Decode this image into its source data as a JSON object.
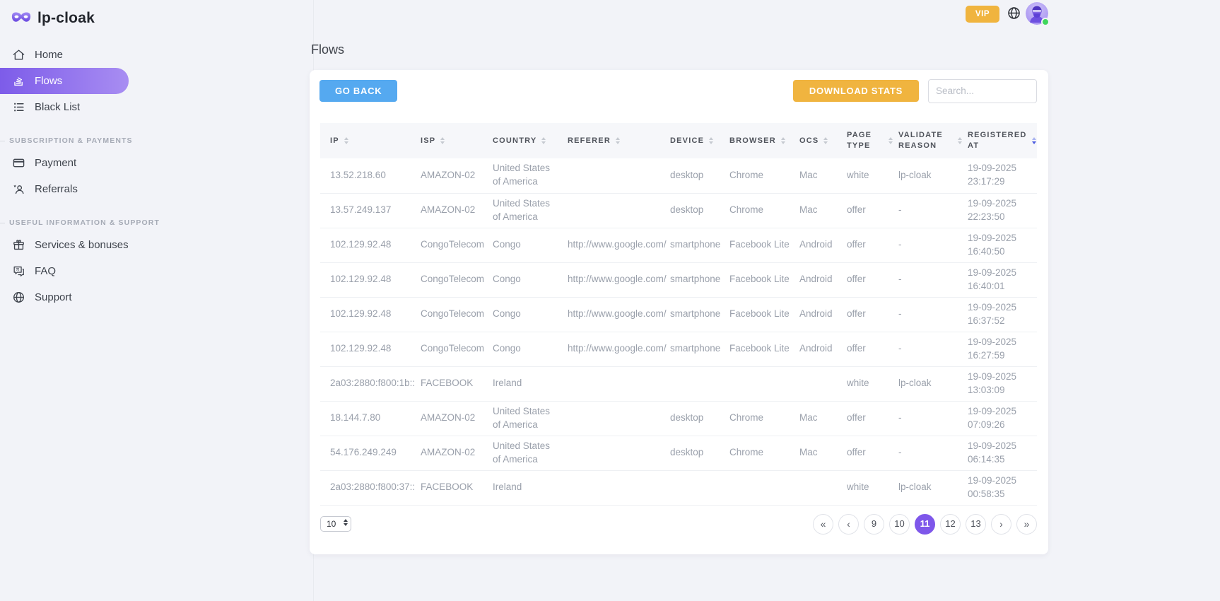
{
  "brand": {
    "name": "lp-cloak"
  },
  "topbar": {
    "vip_label": "VIP",
    "status": "online"
  },
  "sidebar": {
    "sections": [
      {
        "title": "",
        "items": [
          {
            "label": "Home",
            "icon": "home",
            "active": false
          },
          {
            "label": "Flows",
            "icon": "flows",
            "active": true
          },
          {
            "label": "Black List",
            "icon": "blacklist",
            "active": false
          }
        ]
      },
      {
        "title": "SUBSCRIPTION & PAYMENTS",
        "items": [
          {
            "label": "Payment",
            "icon": "payment",
            "active": false
          },
          {
            "label": "Referrals",
            "icon": "referrals",
            "active": false
          }
        ]
      },
      {
        "title": "USEFUL INFORMATION & SUPPORT",
        "items": [
          {
            "label": "Services & bonuses",
            "icon": "services",
            "active": false
          },
          {
            "label": "FAQ",
            "icon": "faq",
            "active": false
          },
          {
            "label": "Support",
            "icon": "support",
            "active": false
          }
        ]
      }
    ]
  },
  "page": {
    "title": "Flows"
  },
  "toolbar": {
    "go_back_label": "GO BACK",
    "download_stats_label": "DOWNLOAD STATS",
    "search_placeholder": "Search..."
  },
  "table": {
    "columns": [
      {
        "label": "IP",
        "sort": "none"
      },
      {
        "label": "ISP",
        "sort": "none"
      },
      {
        "label": "COUNTRY",
        "sort": "none"
      },
      {
        "label": "REFERER",
        "sort": "none"
      },
      {
        "label": "DEVICE",
        "sort": "none"
      },
      {
        "label": "BROWSER",
        "sort": "none"
      },
      {
        "label": "OCS",
        "sort": "none"
      },
      {
        "label": "PAGE TYPE",
        "sort": "none"
      },
      {
        "label": "VALIDATE REASON",
        "sort": "none"
      },
      {
        "label": "REGISTERED AT",
        "sort": "desc"
      }
    ],
    "rows": [
      [
        "13.52.218.60",
        "AMAZON-02",
        "United States of America",
        "",
        "desktop",
        "Chrome",
        "Mac",
        "white",
        "lp-cloak",
        "19-09-2025 23:17:29"
      ],
      [
        "13.57.249.137",
        "AMAZON-02",
        "United States of America",
        "",
        "desktop",
        "Chrome",
        "Mac",
        "offer",
        "-",
        "19-09-2025 22:23:50"
      ],
      [
        "102.129.92.48",
        "CongoTelecom",
        "Congo",
        "http://www.google.com/",
        "smartphone",
        "Facebook Lite",
        "Android",
        "offer",
        "-",
        "19-09-2025 16:40:50"
      ],
      [
        "102.129.92.48",
        "CongoTelecom",
        "Congo",
        "http://www.google.com/",
        "smartphone",
        "Facebook Lite",
        "Android",
        "offer",
        "-",
        "19-09-2025 16:40:01"
      ],
      [
        "102.129.92.48",
        "CongoTelecom",
        "Congo",
        "http://www.google.com/",
        "smartphone",
        "Facebook Lite",
        "Android",
        "offer",
        "-",
        "19-09-2025 16:37:52"
      ],
      [
        "102.129.92.48",
        "CongoTelecom",
        "Congo",
        "http://www.google.com/",
        "smartphone",
        "Facebook Lite",
        "Android",
        "offer",
        "-",
        "19-09-2025 16:27:59"
      ],
      [
        "2a03:2880:f800:1b::",
        "FACEBOOK",
        "Ireland",
        "",
        "",
        "",
        "",
        "white",
        "lp-cloak",
        "19-09-2025 13:03:09"
      ],
      [
        "18.144.7.80",
        "AMAZON-02",
        "United States of America",
        "",
        "desktop",
        "Chrome",
        "Mac",
        "offer",
        "-",
        "19-09-2025 07:09:26"
      ],
      [
        "54.176.249.249",
        "AMAZON-02",
        "United States of America",
        "",
        "desktop",
        "Chrome",
        "Mac",
        "offer",
        "-",
        "19-09-2025 06:14:35"
      ],
      [
        "2a03:2880:f800:37::",
        "FACEBOOK",
        "Ireland",
        "",
        "",
        "",
        "",
        "white",
        "lp-cloak",
        "19-09-2025 00:58:35"
      ]
    ]
  },
  "pagination": {
    "page_size": "10",
    "pages": [
      "9",
      "10",
      "11",
      "12",
      "13"
    ],
    "active_page": "11",
    "controls": {
      "first": "«",
      "prev": "‹",
      "next": "›",
      "last": "»"
    }
  },
  "colors": {
    "accent_purple": "#7e57ea",
    "accent_yellow": "#f0b43f",
    "accent_blue": "#55a9f0",
    "active_gradient_start": "#7d5ce9",
    "active_gradient_end": "#a88df2",
    "online_green": "#3fd65c"
  }
}
